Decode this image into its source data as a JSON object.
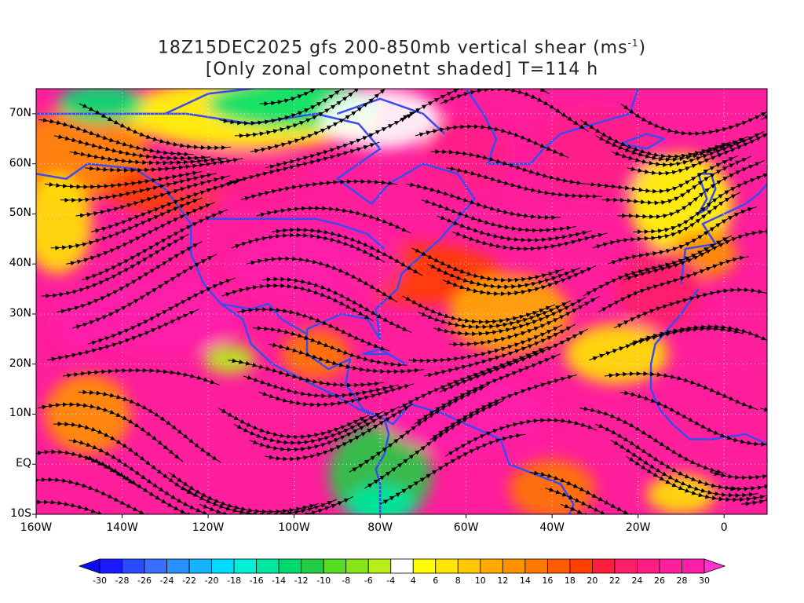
{
  "title": {
    "line1_prefix": "18Z15DEC2025 gfs 200-850mb vertical shear (ms",
    "line1_sup": "-1",
    "line1_suffix": ")",
    "line2": "[Only zonal componetnt shaded] T=114 h"
  },
  "map": {
    "lon_range": [
      -160,
      10
    ],
    "lat_range": [
      -10,
      75
    ],
    "y_ticks": [
      {
        "lat": 70,
        "label": "70N"
      },
      {
        "lat": 60,
        "label": "60N"
      },
      {
        "lat": 50,
        "label": "50N"
      },
      {
        "lat": 40,
        "label": "40N"
      },
      {
        "lat": 30,
        "label": "30N"
      },
      {
        "lat": 20,
        "label": "20N"
      },
      {
        "lat": 10,
        "label": "10N"
      },
      {
        "lat": 0,
        "label": "EQ"
      },
      {
        "lat": -10,
        "label": "10S"
      }
    ],
    "x_ticks": [
      {
        "lon": -160,
        "label": "160W"
      },
      {
        "lon": -140,
        "label": "140W"
      },
      {
        "lon": -120,
        "label": "120W"
      },
      {
        "lon": -100,
        "label": "100W"
      },
      {
        "lon": -80,
        "label": "80W"
      },
      {
        "lon": -60,
        "label": "60W"
      },
      {
        "lon": -40,
        "label": "40W"
      },
      {
        "lon": -20,
        "label": "20W"
      },
      {
        "lon": 0,
        "label": "0"
      }
    ],
    "shading": "zonal component of vertical shear",
    "overlay": "shear streamlines",
    "coastline_color": "#3a4cf0",
    "contour_color": "#8a1a9a"
  },
  "colorbar": {
    "labels": [
      "-30",
      "-28",
      "-26",
      "-24",
      "-22",
      "-20",
      "-18",
      "-16",
      "-14",
      "-12",
      "-10",
      "-8",
      "-6",
      "-4",
      "4",
      "6",
      "8",
      "10",
      "12",
      "14",
      "16",
      "18",
      "20",
      "22",
      "24",
      "26",
      "28",
      "30"
    ],
    "colors": [
      "#1a1aff",
      "#2a4bff",
      "#3a6eff",
      "#2a90ff",
      "#14b4ff",
      "#00dcff",
      "#00f0d8",
      "#00e8a0",
      "#00d870",
      "#22cc44",
      "#55dd22",
      "#88e618",
      "#b8ee1a",
      "#ffffff",
      "#ffff00",
      "#ffe500",
      "#ffc800",
      "#ffaa00",
      "#ff9200",
      "#ff7800",
      "#ff5c00",
      "#ff3e00",
      "#ff1e3c",
      "#ff1e6a",
      "#ff1e88",
      "#ff1e9c",
      "#ff1eaa"
    ],
    "low_end": "#0a0aff",
    "high_end": "#ff33cc"
  }
}
